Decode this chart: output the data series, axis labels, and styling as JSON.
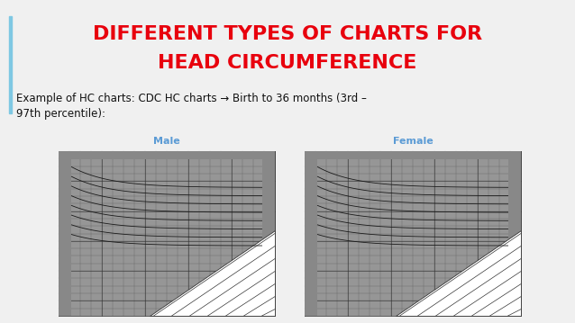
{
  "title_line1": "DIFFERENT TYPES OF CHARTS FOR",
  "title_line2": "HEAD CIRCUMFERENCE",
  "title_color": "#e8000d",
  "title_fontsize": 16,
  "title_fontweight": "bold",
  "subtitle_text": "Example of HC charts: CDC HC charts → Birth to 36 months (3rd –\n97th percentile):",
  "subtitle_fontsize": 8.5,
  "subtitle_color": "#111111",
  "background_color": "#f0f0f0",
  "slide_bg": "#f0f0f0",
  "left_bar_color": "#7ec8e3",
  "chart_bg_dark": "#8a8a8a",
  "chart_bg_light": "#b0b0b0",
  "label1": "Male",
  "label2": "Female",
  "label_color": "#5b9bd5",
  "label_fontsize": 8
}
